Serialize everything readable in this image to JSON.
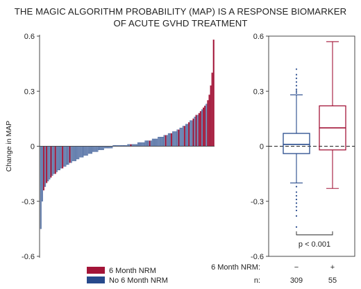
{
  "title": {
    "line1": "THE MAGIC ALGORITHM PROBABILITY (MAP) IS A RESPONSE BIOMARKER",
    "line2": "OF ACUTE GVHD TREATMENT"
  },
  "colors": {
    "nrm": "#a31538",
    "no_nrm": "#274a8c",
    "no_nrm_fill": "#7d94bb",
    "axis": "#222222"
  },
  "chart_data": [
    {
      "type": "bar",
      "title": "",
      "xlabel": "",
      "ylabel": "Change in MAP",
      "ylim": [
        -0.6,
        0.6
      ],
      "yticks": [
        "0.6",
        "0.3",
        "0",
        "-0.3",
        "-0.6"
      ],
      "ytick_values": [
        0.6,
        0.3,
        0,
        -0.3,
        -0.6
      ],
      "sorted": "ascending",
      "legend_position": "bottom-center",
      "series": [
        {
          "name": "6 Month NRM",
          "color": "#a31538"
        },
        {
          "name": "No 6 Month NRM",
          "color": "#274a8c"
        }
      ],
      "x": [
        1,
        2,
        3,
        4,
        5,
        6,
        7,
        8,
        9,
        10,
        11,
        12,
        13,
        14,
        15,
        16,
        17,
        18,
        19,
        20,
        21,
        22,
        23,
        24,
        25,
        26,
        27,
        28,
        29,
        30,
        31,
        32,
        33,
        34,
        35,
        36,
        37,
        38,
        39,
        40,
        41,
        42,
        43,
        44,
        45,
        46,
        47,
        48,
        49,
        50,
        51,
        52,
        53,
        54,
        55,
        56,
        57,
        58,
        59,
        60,
        61,
        62,
        63,
        64,
        65,
        66,
        67,
        68,
        69,
        70,
        71,
        72,
        73,
        74,
        75,
        76,
        77,
        78,
        79,
        80,
        81,
        82,
        83,
        84,
        85,
        86,
        87,
        88,
        89,
        90,
        91,
        92,
        93,
        94,
        95,
        96,
        97,
        98,
        99,
        100,
        101,
        102,
        103,
        104,
        105,
        106,
        107,
        108,
        109,
        110,
        111,
        112,
        113,
        114,
        115,
        116,
        117,
        118,
        119,
        120
      ],
      "values": [
        -0.45,
        -0.3,
        -0.24,
        -0.22,
        -0.2,
        -0.19,
        -0.18,
        -0.17,
        -0.16,
        -0.15,
        -0.15,
        -0.14,
        -0.13,
        -0.13,
        -0.12,
        -0.12,
        -0.11,
        -0.11,
        -0.1,
        -0.1,
        -0.09,
        -0.09,
        -0.08,
        -0.08,
        -0.08,
        -0.07,
        -0.07,
        -0.06,
        -0.06,
        -0.06,
        -0.05,
        -0.05,
        -0.05,
        -0.04,
        -0.04,
        -0.04,
        -0.03,
        -0.03,
        -0.03,
        -0.03,
        -0.02,
        -0.02,
        -0.02,
        -0.02,
        -0.01,
        -0.01,
        -0.01,
        -0.01,
        -0.01,
        -0.01,
        0,
        0,
        0,
        0,
        0,
        0,
        0,
        0,
        0,
        0,
        0.01,
        0.01,
        0.01,
        0.01,
        0.01,
        0.01,
        0.01,
        0.02,
        0.02,
        0.02,
        0.02,
        0.02,
        0.03,
        0.03,
        0.03,
        0.03,
        0.03,
        0.04,
        0.04,
        0.04,
        0.04,
        0.05,
        0.05,
        0.05,
        0.05,
        0.06,
        0.06,
        0.06,
        0.07,
        0.07,
        0.07,
        0.08,
        0.08,
        0.08,
        0.09,
        0.09,
        0.1,
        0.1,
        0.11,
        0.11,
        0.12,
        0.12,
        0.13,
        0.14,
        0.14,
        0.15,
        0.16,
        0.17,
        0.17,
        0.18,
        0.19,
        0.2,
        0.21,
        0.22,
        0.23,
        0.25,
        0.28,
        0.33,
        0.4,
        0.58
      ],
      "groups": [
        "No 6 Month NRM",
        "No 6 Month NRM",
        "6 Month NRM",
        "No 6 Month NRM",
        "6 Month NRM",
        "No 6 Month NRM",
        "No 6 Month NRM",
        "6 Month NRM",
        "No 6 Month NRM",
        "No 6 Month NRM",
        "6 Month NRM",
        "No 6 Month NRM",
        "No 6 Month NRM",
        "No 6 Month NRM",
        "No 6 Month NRM",
        "6 Month NRM",
        "No 6 Month NRM",
        "No 6 Month NRM",
        "No 6 Month NRM",
        "No 6 Month NRM",
        "6 Month NRM",
        "No 6 Month NRM",
        "No 6 Month NRM",
        "No 6 Month NRM",
        "No 6 Month NRM",
        "No 6 Month NRM",
        "No 6 Month NRM",
        "No 6 Month NRM",
        "No 6 Month NRM",
        "No 6 Month NRM",
        "No 6 Month NRM",
        "No 6 Month NRM",
        "No 6 Month NRM",
        "No 6 Month NRM",
        "No 6 Month NRM",
        "No 6 Month NRM",
        "No 6 Month NRM",
        "No 6 Month NRM",
        "No 6 Month NRM",
        "No 6 Month NRM",
        "No 6 Month NRM",
        "No 6 Month NRM",
        "No 6 Month NRM",
        "No 6 Month NRM",
        "No 6 Month NRM",
        "No 6 Month NRM",
        "No 6 Month NRM",
        "No 6 Month NRM",
        "No 6 Month NRM",
        "No 6 Month NRM",
        "No 6 Month NRM",
        "No 6 Month NRM",
        "No 6 Month NRM",
        "No 6 Month NRM",
        "No 6 Month NRM",
        "No 6 Month NRM",
        "No 6 Month NRM",
        "No 6 Month NRM",
        "No 6 Month NRM",
        "No 6 Month NRM",
        "No 6 Month NRM",
        "No 6 Month NRM",
        "6 Month NRM",
        "No 6 Month NRM",
        "No 6 Month NRM",
        "No 6 Month NRM",
        "No 6 Month NRM",
        "No 6 Month NRM",
        "No 6 Month NRM",
        "No 6 Month NRM",
        "No 6 Month NRM",
        "No 6 Month NRM",
        "No 6 Month NRM",
        "No 6 Month NRM",
        "No 6 Month NRM",
        "6 Month NRM",
        "No 6 Month NRM",
        "No 6 Month NRM",
        "No 6 Month NRM",
        "No 6 Month NRM",
        "No 6 Month NRM",
        "No 6 Month NRM",
        "No 6 Month NRM",
        "No 6 Month NRM",
        "No 6 Month NRM",
        "No 6 Month NRM",
        "6 Month NRM",
        "No 6 Month NRM",
        "No 6 Month NRM",
        "No 6 Month NRM",
        "6 Month NRM",
        "No 6 Month NRM",
        "No 6 Month NRM",
        "No 6 Month NRM",
        "No 6 Month NRM",
        "6 Month NRM",
        "No 6 Month NRM",
        "No 6 Month NRM",
        "No 6 Month NRM",
        "6 Month NRM",
        "No 6 Month NRM",
        "No 6 Month NRM",
        "6 Month NRM",
        "No 6 Month NRM",
        "No 6 Month NRM",
        "6 Month NRM",
        "No 6 Month NRM",
        "6 Month NRM",
        "No 6 Month NRM",
        "6 Month NRM",
        "6 Month NRM",
        "No 6 Month NRM",
        "6 Month NRM",
        "6 Month NRM",
        "No 6 Month NRM",
        "6 Month NRM",
        "6 Month NRM",
        "6 Month NRM",
        "6 Month NRM",
        "6 Month NRM"
      ]
    },
    {
      "type": "box",
      "title": "",
      "ylabel": "",
      "ylim": [
        -0.6,
        0.6
      ],
      "yticks": [
        "0.6",
        "0.3",
        "0",
        "-0.3",
        "-0.6"
      ],
      "ytick_values": [
        0.6,
        0.3,
        0,
        -0.3,
        -0.6
      ],
      "reference_line": 0,
      "group_label": "6 Month NRM:",
      "count_label": "n:",
      "annotation": "p < 0.001",
      "series": [
        {
          "name": "−",
          "n": "309",
          "color": "#274a8c",
          "whisker_low": -0.2,
          "q1": -0.04,
          "median": 0.01,
          "q3": 0.07,
          "whisker_high": 0.28,
          "outliers": [
            -0.22,
            -0.25,
            -0.27,
            -0.29,
            -0.31,
            -0.33,
            -0.35,
            -0.38,
            -0.44,
            0.29,
            0.3,
            0.31,
            0.33,
            0.35,
            0.37,
            0.39,
            0.42
          ]
        },
        {
          "name": "+",
          "n": "55",
          "color": "#a31538",
          "whisker_low": -0.23,
          "q1": -0.02,
          "median": 0.1,
          "q3": 0.22,
          "whisker_high": 0.57,
          "outliers": []
        }
      ]
    }
  ]
}
